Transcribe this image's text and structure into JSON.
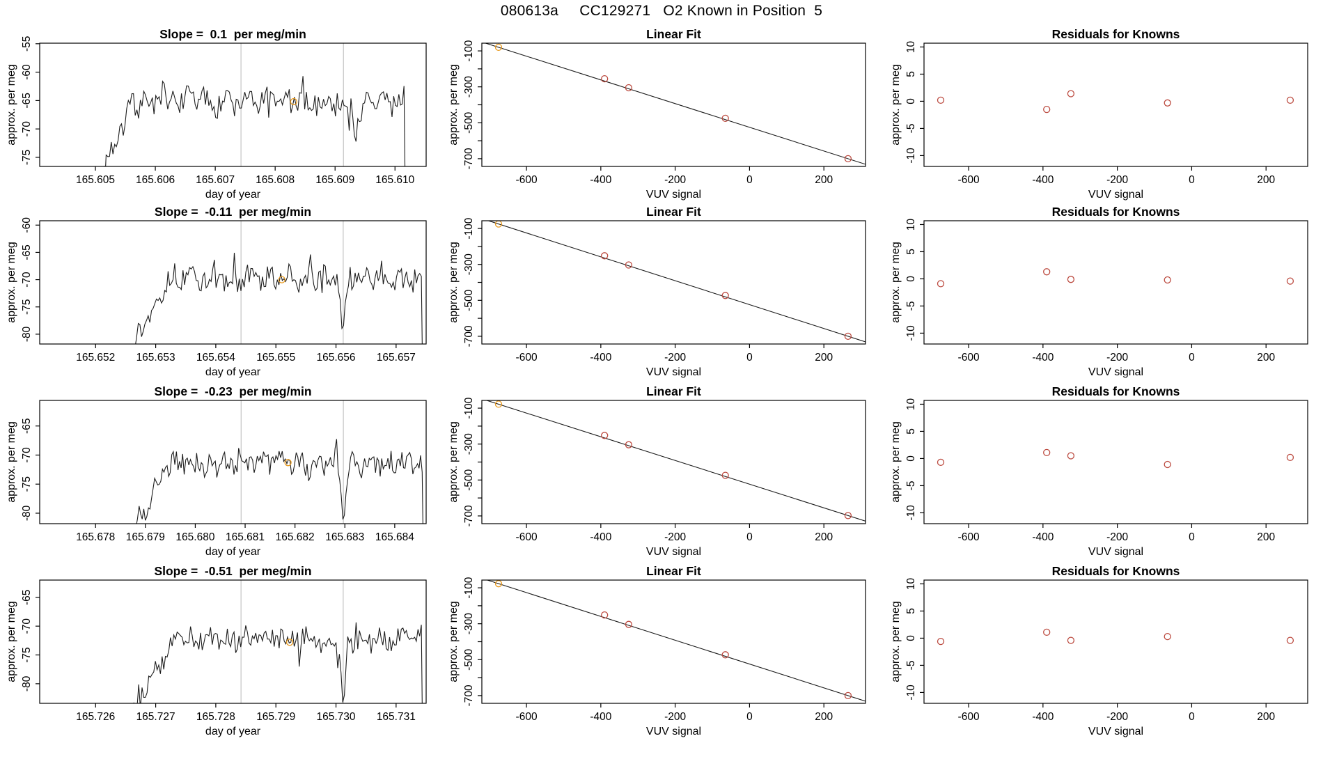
{
  "main_title": "080613a     CC129271   O2 Known in Position  5",
  "colors": {
    "trace": "#1c1c1c",
    "box": "#000000",
    "vline": "#c8c8c8",
    "orange": "#e8991c",
    "point_red": "#bc4b40",
    "text": "#000000",
    "title_text": "#000000"
  },
  "chart_data": {
    "layout": "4 rows x 3 columns",
    "rows": [
      {
        "timeseries": {
          "type": "line",
          "title": "Slope =  0.1  per meg/min",
          "xlabel": "day of year",
          "ylabel": "approx. per meg",
          "xlim": [
            165.60407,
            165.61052
          ],
          "xticks": [
            165.605,
            165.606,
            165.607,
            165.608,
            165.609,
            165.61
          ],
          "xtick_labels": [
            "165.605",
            "165.606",
            "165.607",
            "165.608",
            "165.609",
            "165.610"
          ],
          "ylim": [
            -76.6,
            -54.9
          ],
          "yticks": [
            -75,
            -70,
            -65,
            -60,
            -55
          ],
          "vlines": [
            165.60743,
            165.60914
          ],
          "highlight": {
            "x": 165.60831,
            "y": -65.2
          },
          "trace": {
            "start": 165.60515,
            "ramp_end": 165.60565,
            "end": 165.61015,
            "base": -65.3,
            "amp": 2.1,
            "floor": -76.5,
            "dips": [
              {
                "x": 165.60935,
                "d": 4.5,
                "w": 6e-05
              }
            ],
            "seed": 7,
            "n": 175
          }
        },
        "linear_fit": {
          "type": "scatter",
          "title": "Linear Fit",
          "xlabel": "VUV signal",
          "ylabel": "approx. per meg",
          "xlim": [
            -720,
            312
          ],
          "xticks": [
            -600,
            -400,
            -200,
            0,
            200
          ],
          "ylim": [
            -743,
            -57
          ],
          "yticks": [
            -700,
            -600,
            -500,
            -400,
            -300,
            -200,
            -100
          ],
          "ytick_labeled": [
            -700,
            -500,
            -300,
            -100
          ],
          "x": [
            -675,
            -390,
            -325,
            -65,
            265
          ],
          "y": [
            -80,
            -255,
            -305,
            -475,
            -700
          ]
        },
        "residuals": {
          "type": "scatter",
          "title": "Residuals for Knowns",
          "xlabel": "VUV signal",
          "ylabel": "approx. per meg",
          "xlim": [
            -720,
            312
          ],
          "xticks": [
            -600,
            -400,
            -200,
            0,
            200
          ],
          "ylim": [
            -12,
            10.7
          ],
          "yticks": [
            -10,
            -5,
            0,
            5,
            10
          ],
          "x": [
            -675,
            -390,
            -325,
            -65,
            265
          ],
          "y": [
            0.2,
            -1.5,
            1.4,
            -0.3,
            0.2
          ]
        }
      },
      {
        "timeseries": {
          "type": "line",
          "title": "Slope =  -0.11  per meg/min",
          "xlabel": "day of year",
          "ylabel": "approx. per meg",
          "xlim": [
            165.65107,
            165.6575
          ],
          "xticks": [
            165.652,
            165.653,
            165.654,
            165.655,
            165.656,
            165.657
          ],
          "xtick_labels": [
            "165.652",
            "165.653",
            "165.654",
            "165.655",
            "165.656",
            "165.657"
          ],
          "ylim": [
            -81.8,
            -59.2
          ],
          "yticks": [
            -80,
            -75,
            -70,
            -65,
            -60
          ],
          "vlines": [
            165.65442,
            165.65612
          ],
          "highlight": {
            "x": 165.6551,
            "y": -70.0
          },
          "trace": {
            "start": 165.6526,
            "ramp_end": 165.6532,
            "end": 165.65742,
            "base": -69.8,
            "amp": 2.0,
            "floor": -82.5,
            "dips": [
              {
                "x": 165.65612,
                "d": 11,
                "w": 5e-05
              }
            ],
            "seed": 13,
            "n": 175
          }
        },
        "linear_fit": {
          "type": "scatter",
          "title": "Linear Fit",
          "xlabel": "VUV signal",
          "ylabel": "approx. per meg",
          "xlim": [
            -720,
            312
          ],
          "xticks": [
            -600,
            -400,
            -200,
            0,
            200
          ],
          "ylim": [
            -743,
            -57
          ],
          "yticks": [
            -700,
            -600,
            -500,
            -400,
            -300,
            -200,
            -100
          ],
          "ytick_labeled": [
            -700,
            -500,
            -300,
            -100
          ],
          "x": [
            -675,
            -390,
            -325,
            -65,
            265
          ],
          "y": [
            -75,
            -252,
            -303,
            -473,
            -700
          ]
        },
        "residuals": {
          "type": "scatter",
          "title": "Residuals for Knowns",
          "xlabel": "VUV signal",
          "ylabel": "approx. per meg",
          "xlim": [
            -720,
            312
          ],
          "xticks": [
            -600,
            -400,
            -200,
            0,
            200
          ],
          "ylim": [
            -12,
            10.7
          ],
          "yticks": [
            -10,
            -5,
            0,
            5,
            10
          ],
          "x": [
            -675,
            -390,
            -325,
            -65,
            265
          ],
          "y": [
            -0.9,
            1.3,
            -0.1,
            -0.2,
            -0.4
          ]
        }
      },
      {
        "timeseries": {
          "type": "line",
          "title": "Slope =  -0.23  per meg/min",
          "xlabel": "day of year",
          "ylabel": "approx. per meg",
          "xlim": [
            165.67688,
            165.68463
          ],
          "xticks": [
            165.678,
            165.679,
            165.68,
            165.681,
            165.682,
            165.683,
            165.684
          ],
          "xtick_labels": [
            "165.678",
            "165.679",
            "165.680",
            "165.681",
            "165.682",
            "165.683",
            "165.684"
          ],
          "ylim": [
            -81.8,
            -60.6
          ],
          "yticks": [
            -80,
            -75,
            -70,
            -65
          ],
          "vlines": [
            165.68092,
            165.68297
          ],
          "highlight": {
            "x": 165.68186,
            "y": -71.3
          },
          "trace": {
            "start": 165.67878,
            "ramp_end": 165.6795,
            "end": 165.68455,
            "base": -71.3,
            "amp": 2.0,
            "floor": -82.5,
            "dips": [
              {
                "x": 165.68297,
                "d": 9,
                "w": 6e-05
              }
            ],
            "seed": 21,
            "n": 185
          }
        },
        "linear_fit": {
          "type": "scatter",
          "title": "Linear Fit",
          "xlabel": "VUV signal",
          "ylabel": "approx. per meg",
          "xlim": [
            -720,
            312
          ],
          "xticks": [
            -600,
            -400,
            -200,
            0,
            200
          ],
          "ylim": [
            -743,
            -57
          ],
          "yticks": [
            -700,
            -600,
            -500,
            -400,
            -300,
            -200,
            -100
          ],
          "ytick_labeled": [
            -700,
            -500,
            -300,
            -100
          ],
          "x": [
            -675,
            -390,
            -325,
            -65,
            265
          ],
          "y": [
            -78,
            -252,
            -304,
            -474,
            -698
          ]
        },
        "residuals": {
          "type": "scatter",
          "title": "Residuals for Knowns",
          "xlabel": "VUV signal",
          "ylabel": "approx. per meg",
          "xlim": [
            -720,
            312
          ],
          "xticks": [
            -600,
            -400,
            -200,
            0,
            200
          ],
          "ylim": [
            -12,
            10.7
          ],
          "yticks": [
            -10,
            -5,
            0,
            5,
            10
          ],
          "x": [
            -675,
            -390,
            -325,
            -65,
            265
          ],
          "y": [
            -0.7,
            1.1,
            0.5,
            -1.1,
            0.2
          ]
        }
      },
      {
        "timeseries": {
          "type": "line",
          "title": "Slope =  -0.51  per meg/min",
          "xlabel": "day of year",
          "ylabel": "approx. per meg",
          "xlim": [
            165.72507,
            165.7315
          ],
          "xticks": [
            165.726,
            165.727,
            165.728,
            165.729,
            165.73,
            165.731
          ],
          "xtick_labels": [
            "165.726",
            "165.727",
            "165.728",
            "165.729",
            "165.730",
            "165.731"
          ],
          "ylim": [
            -83.4,
            -62.0
          ],
          "yticks": [
            -80,
            -75,
            -70,
            -65
          ],
          "vlines": [
            165.72842,
            165.73012
          ],
          "highlight": {
            "x": 165.72923,
            "y": -72.8
          },
          "trace": {
            "start": 165.72655,
            "ramp_end": 165.7273,
            "end": 165.73142,
            "base": -72.3,
            "amp": 1.9,
            "floor": -85.0,
            "dips": [
              {
                "x": 165.73012,
                "d": 13,
                "w": 5e-05
              }
            ],
            "seed": 29,
            "n": 175
          }
        },
        "linear_fit": {
          "type": "scatter",
          "title": "Linear Fit",
          "xlabel": "VUV signal",
          "ylabel": "approx. per meg",
          "xlim": [
            -720,
            312
          ],
          "xticks": [
            -600,
            -400,
            -200,
            0,
            200
          ],
          "ylim": [
            -743,
            -57
          ],
          "yticks": [
            -700,
            -600,
            -500,
            -400,
            -300,
            -200,
            -100
          ],
          "ytick_labeled": [
            -700,
            -500,
            -300,
            -100
          ],
          "x": [
            -675,
            -390,
            -325,
            -65,
            265
          ],
          "y": [
            -77,
            -251,
            -304,
            -473,
            -700
          ]
        },
        "residuals": {
          "type": "scatter",
          "title": "Residuals for Knowns",
          "xlabel": "VUV signal",
          "ylabel": "approx. per meg",
          "xlim": [
            -720,
            312
          ],
          "xticks": [
            -600,
            -400,
            -200,
            0,
            200
          ],
          "ylim": [
            -12,
            10.7
          ],
          "yticks": [
            -10,
            -5,
            0,
            5,
            10
          ],
          "x": [
            -675,
            -390,
            -325,
            -65,
            265
          ],
          "y": [
            -0.6,
            1.1,
            -0.4,
            0.3,
            -0.4
          ]
        }
      }
    ]
  }
}
